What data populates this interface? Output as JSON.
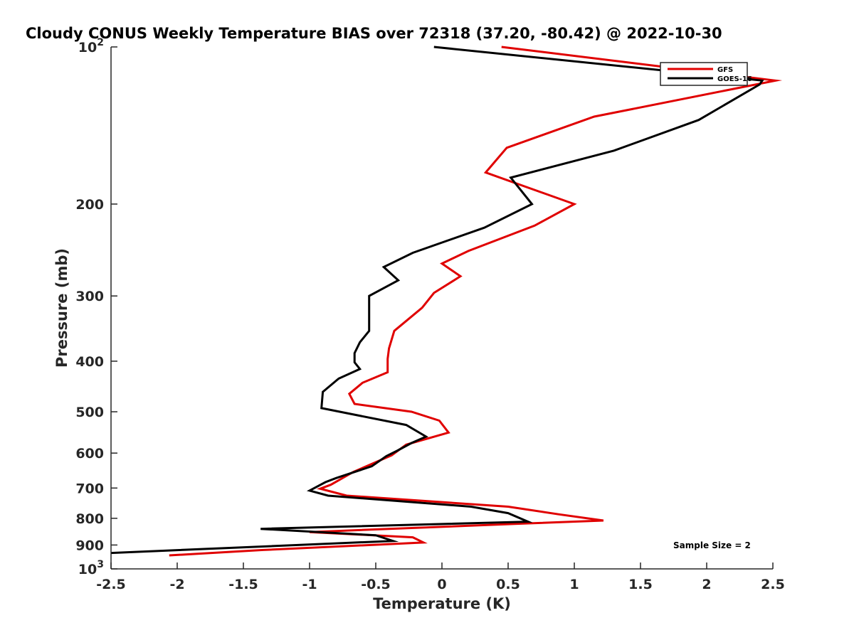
{
  "chart_data": {
    "type": "line",
    "title": "Cloudy CONUS Weekly Temperature BIAS over 72318 (37.20, -80.42) @ 2022-10-30",
    "xlabel": "Temperature (K)",
    "ylabel": "Pressure (mb)",
    "xlim": [
      -2.5,
      2.5
    ],
    "ylim": [
      100,
      1000
    ],
    "yscale": "log",
    "y_reversed": true,
    "grid": false,
    "legend_position": "top-right",
    "x_ticks": [
      -2.5,
      -2,
      -1.5,
      -1,
      -0.5,
      0,
      0.5,
      1,
      1.5,
      2,
      2.5
    ],
    "x_tick_labels": [
      "-2.5",
      "-2",
      "-1.5",
      "-1",
      "-0.5",
      "0",
      "0.5",
      "1",
      "1.5",
      "2",
      "2.5"
    ],
    "y_ticks": [
      100,
      200,
      300,
      400,
      500,
      600,
      700,
      800,
      900,
      1000
    ],
    "y_tick_labels": [
      {
        "base": "10",
        "exp": "2"
      },
      {
        "base": "200",
        "exp": ""
      },
      {
        "base": "300",
        "exp": ""
      },
      {
        "base": "400",
        "exp": ""
      },
      {
        "base": "500",
        "exp": ""
      },
      {
        "base": "600",
        "exp": ""
      },
      {
        "base": "700",
        "exp": ""
      },
      {
        "base": "800",
        "exp": ""
      },
      {
        "base": "900",
        "exp": ""
      },
      {
        "base": "10",
        "exp": "3"
      }
    ],
    "annotation": "Sample Size = 2",
    "series": [
      {
        "name": "GFS",
        "color": "#e00000",
        "points": [
          [
            0.45,
            100
          ],
          [
            2.52,
            116
          ],
          [
            1.15,
            136
          ],
          [
            0.49,
            156
          ],
          [
            0.33,
            174
          ],
          [
            1.0,
            200
          ],
          [
            0.7,
            220
          ],
          [
            0.2,
            246
          ],
          [
            0.0,
            260
          ],
          [
            0.14,
            275
          ],
          [
            -0.06,
            296
          ],
          [
            -0.15,
            316
          ],
          [
            -0.36,
            350
          ],
          [
            -0.4,
            378
          ],
          [
            -0.41,
            396
          ],
          [
            -0.41,
            420
          ],
          [
            -0.6,
            440
          ],
          [
            -0.7,
            462
          ],
          [
            -0.66,
            483
          ],
          [
            -0.23,
            500
          ],
          [
            -0.02,
            520
          ],
          [
            0.05,
            548
          ],
          [
            -0.27,
            578
          ],
          [
            -0.38,
            606
          ],
          [
            -0.67,
            652
          ],
          [
            -0.84,
            690
          ],
          [
            -0.92,
            702
          ],
          [
            -0.72,
            724
          ],
          [
            0.5,
            760
          ],
          [
            0.88,
            786
          ],
          [
            1.22,
            808
          ],
          [
            0.65,
            818
          ],
          [
            -1.0,
            850
          ],
          [
            -0.22,
            870
          ],
          [
            -0.14,
            890
          ],
          [
            -1.35,
            920
          ],
          [
            -2.06,
            942
          ]
        ]
      },
      {
        "name": "GOES-16",
        "color": "#000000",
        "points": [
          [
            -0.06,
            100
          ],
          [
            2.42,
            116
          ],
          [
            2.4,
            118
          ],
          [
            1.94,
            138
          ],
          [
            1.3,
            158
          ],
          [
            0.52,
            178
          ],
          [
            0.68,
            200
          ],
          [
            0.32,
            222
          ],
          [
            -0.22,
            248
          ],
          [
            -0.44,
            264
          ],
          [
            -0.33,
            280
          ],
          [
            -0.55,
            300
          ],
          [
            -0.55,
            324
          ],
          [
            -0.55,
            350
          ],
          [
            -0.62,
            368
          ],
          [
            -0.66,
            386
          ],
          [
            -0.66,
            402
          ],
          [
            -0.62,
            414
          ],
          [
            -0.78,
            432
          ],
          [
            -0.9,
            458
          ],
          [
            -0.91,
            492
          ],
          [
            -0.27,
            530
          ],
          [
            -0.12,
            558
          ],
          [
            -0.23,
            574
          ],
          [
            -0.34,
            594
          ],
          [
            -0.42,
            608
          ],
          [
            -0.53,
            636
          ],
          [
            -0.8,
            670
          ],
          [
            -0.88,
            682
          ],
          [
            -1.0,
            708
          ],
          [
            -0.86,
            724
          ],
          [
            0.22,
            760
          ],
          [
            0.5,
            782
          ],
          [
            0.65,
            812
          ],
          [
            -1.37,
            838
          ],
          [
            -0.5,
            862
          ],
          [
            -0.37,
            884
          ],
          [
            -2.5,
            932
          ]
        ]
      }
    ]
  }
}
